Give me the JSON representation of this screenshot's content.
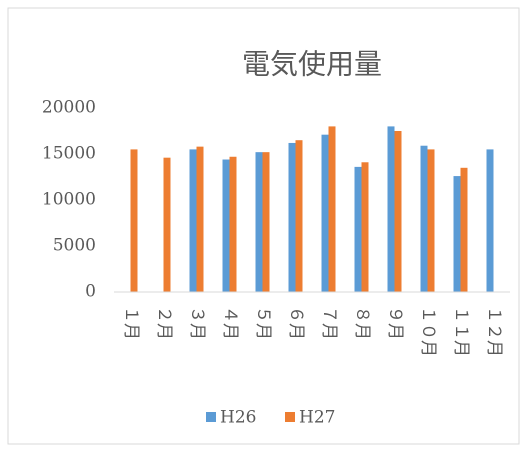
{
  "chart_data": {
    "type": "bar",
    "title": "電気使用量",
    "categories": [
      "１月",
      "２月",
      "３月",
      "４月",
      "５月",
      "６月",
      "７月",
      "８月",
      "９月",
      "１０月",
      "１１月",
      "１２月"
    ],
    "series": [
      {
        "name": "H26",
        "color": "#5b9bd5",
        "values": [
          null,
          null,
          15500,
          14400,
          15200,
          16200,
          17100,
          13600,
          18000,
          15900,
          12600,
          15500
        ]
      },
      {
        "name": "H27",
        "color": "#ed7d31",
        "values": [
          15500,
          14600,
          15800,
          14700,
          15200,
          16500,
          18000,
          14100,
          17500,
          15500,
          13500,
          null
        ]
      }
    ],
    "ylim": [
      0,
      20000
    ],
    "yticks": [
      0,
      5000,
      10000,
      15000,
      20000
    ],
    "grid": false,
    "legend": "bottom"
  }
}
